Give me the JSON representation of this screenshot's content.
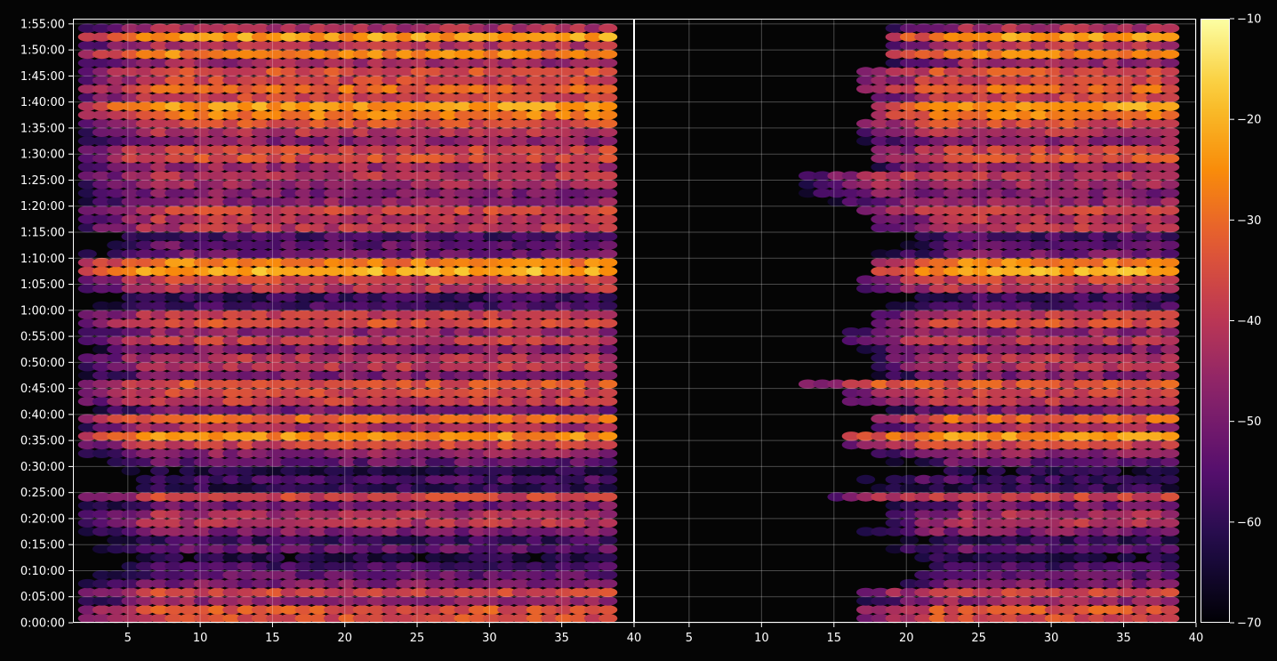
{
  "chart_data": {
    "type": "heatmap",
    "title": "",
    "colormap": "inferno",
    "background": "#050505",
    "grid": true,
    "panels": [
      {
        "name": "",
        "xlim": [
          1.2,
          40
        ],
        "x_ticks": [
          5,
          10,
          15,
          20,
          25,
          30,
          35,
          40
        ],
        "band_start": [
          1,
          1,
          1,
          1,
          1,
          1,
          1,
          1,
          1,
          1,
          1,
          1,
          1,
          1,
          1,
          1,
          1,
          1,
          1,
          1,
          1,
          1,
          1,
          1,
          1,
          1,
          1,
          1,
          1,
          1,
          1,
          1,
          1,
          1,
          1,
          1,
          1,
          1,
          1,
          1,
          1,
          1,
          1,
          1,
          1,
          1,
          1,
          1,
          1,
          1,
          1,
          1,
          1,
          1,
          1,
          1,
          1,
          1,
          1,
          1,
          1,
          1,
          1,
          1,
          1,
          1,
          1,
          1,
          1
        ]
      },
      {
        "name": "",
        "xlim": [
          1.2,
          40
        ],
        "x_ticks": [
          5,
          10,
          15,
          20,
          25,
          30,
          35,
          40
        ],
        "band_start": [
          16,
          16,
          16,
          16,
          18,
          18,
          18,
          16,
          17,
          17,
          16,
          18,
          18,
          18,
          14,
          14,
          14,
          17,
          17,
          17,
          15,
          15,
          17,
          17,
          17,
          15,
          15,
          12,
          17,
          17,
          17,
          15,
          15,
          15,
          17,
          17,
          17,
          17,
          16,
          16,
          17,
          17,
          17,
          17,
          17,
          17,
          17,
          16,
          14,
          12,
          12,
          12,
          17,
          17,
          17,
          16,
          16,
          16,
          17,
          17,
          17,
          16,
          16,
          16,
          18,
          18,
          18,
          18,
          18
        ]
      }
    ],
    "y_axis": {
      "label": "",
      "min_seconds": 0,
      "max_seconds": 6960,
      "tick_step_seconds": 300,
      "tick_labels": [
        "0:00:00",
        "0:05:00",
        "0:10:00",
        "0:15:00",
        "0:20:00",
        "0:25:00",
        "0:30:00",
        "0:35:00",
        "0:40:00",
        "0:45:00",
        "0:50:00",
        "0:55:00",
        "1:00:00",
        "1:05:00",
        "1:10:00",
        "1:15:00",
        "1:20:00",
        "1:25:00",
        "1:30:00",
        "1:35:00",
        "1:40:00",
        "1:45:00",
        "1:50:00",
        "1:55:00"
      ]
    },
    "colorbar": {
      "label": "",
      "range": [
        -70,
        -10
      ],
      "ticks": [
        -10,
        -20,
        -30,
        -40,
        -50,
        -60,
        -70
      ],
      "tick_labels": [
        "−10",
        "−20",
        "−30",
        "−40",
        "−50",
        "−60",
        "−70"
      ]
    },
    "bands": {
      "row_height_seconds": 100,
      "columns": 37,
      "level_db": [
        -34,
        -33,
        -45,
        -36,
        -48,
        -52,
        -56,
        -62,
        -52,
        -58,
        -48,
        -40,
        -42,
        -50,
        -36,
        -60,
        -56,
        -62,
        -52,
        -46,
        -36,
        -24,
        -42,
        -30,
        -50,
        -38,
        -36,
        -33,
        -48,
        -40,
        -40,
        -48,
        -38,
        -46,
        -34,
        -38,
        -56,
        -58,
        -40,
        -36,
        -20,
        -26,
        -50,
        -52,
        -56,
        -40,
        -40,
        -36,
        -46,
        -48,
        -44,
        -40,
        -44,
        -34,
        -36,
        -46,
        -40,
        -34,
        -26,
        -22,
        -36,
        -30,
        -36,
        -34,
        -44,
        -26,
        -40,
        -22,
        -42
      ]
    }
  }
}
